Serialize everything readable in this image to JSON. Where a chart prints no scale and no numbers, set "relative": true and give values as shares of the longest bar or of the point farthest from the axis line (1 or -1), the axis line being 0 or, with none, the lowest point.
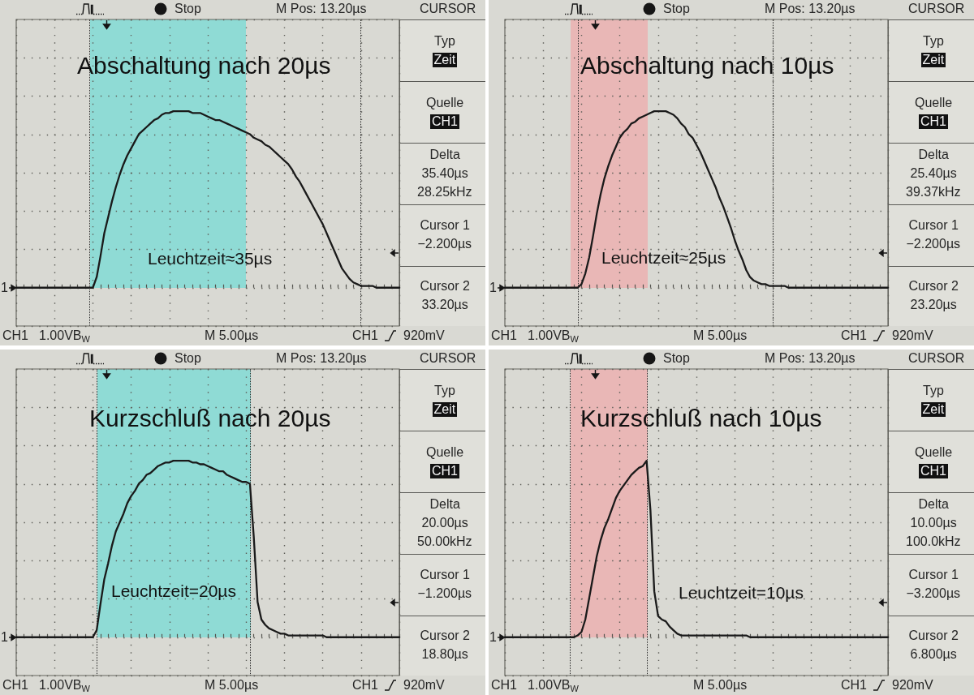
{
  "chart_data": [
    {
      "type": "line",
      "title": "Abschaltung nach 20µs",
      "relative": true,
      "categories": [
        null,
        null,
        null,
        null,
        null,
        null,
        null,
        null,
        null,
        null,
        null,
        null,
        null,
        null,
        null,
        null,
        null,
        null,
        null,
        null,
        null,
        null,
        null,
        null,
        null,
        null,
        null,
        null,
        null,
        null,
        null,
        null,
        null,
        null,
        null,
        null,
        null,
        null,
        null,
        null,
        null,
        null,
        null,
        null,
        null,
        null,
        null,
        null,
        null,
        null,
        null,
        null,
        null,
        null,
        null,
        null,
        null,
        null,
        null,
        null,
        null,
        null,
        null,
        null,
        null,
        null,
        null,
        null,
        null,
        null,
        null,
        null,
        null,
        null,
        null,
        null,
        null,
        null,
        null,
        null,
        null,
        null,
        null,
        null,
        null,
        null,
        null,
        null,
        null,
        null,
        null,
        null,
        null,
        null,
        null,
        null,
        null,
        null,
        null,
        null,
        null
      ],
      "values": [
        0,
        0,
        0,
        0,
        0,
        0,
        0,
        0,
        0,
        0,
        0,
        0,
        0,
        0,
        0,
        0,
        0,
        0,
        0,
        0,
        0,
        0.06,
        0.18,
        0.31,
        0.4,
        0.49,
        0.57,
        0.64,
        0.7,
        0.75,
        0.79,
        0.83,
        0.87,
        0.89,
        0.91,
        0.93,
        0.95,
        0.96,
        0.98,
        0.99,
        0.99,
        1,
        1,
        1,
        1,
        1,
        0.99,
        0.99,
        0.99,
        0.98,
        0.97,
        0.96,
        0.95,
        0.95,
        0.94,
        0.93,
        0.92,
        0.91,
        0.9,
        0.89,
        0.88,
        0.87,
        0.85,
        0.84,
        0.83,
        0.81,
        0.8,
        0.78,
        0.76,
        0.74,
        0.72,
        0.7,
        0.67,
        0.63,
        0.6,
        0.56,
        0.52,
        0.48,
        0.44,
        0.4,
        0.36,
        0.31,
        0.26,
        0.21,
        0.16,
        0.11,
        0.08,
        0.05,
        0.03,
        0.02,
        0.01,
        0.01,
        0.01,
        0.01,
        0,
        0,
        0,
        0,
        0,
        0,
        0
      ],
      "color": "#1a1a1a",
      "grid": true,
      "annotations": [
        "Stop",
        "M Pos: 13.20µs",
        "CURSOR",
        "Typ",
        "Zeit",
        "Quelle",
        "CH1",
        "Delta",
        "35.40µs",
        "28.25kHz",
        "Cursor 1",
        "−2.200µs",
        "Cursor 2",
        "33.20µs",
        "CH1",
        "1.00VB$_{W}$",
        "M 5.00µs",
        "CH1",
        "920mV",
        "1",
        "Leuchtzeit≈35µs"
      ]
    },
    {
      "type": "line",
      "title": "Abschaltung nach 10µs",
      "relative": true,
      "categories": [
        null,
        null,
        null,
        null,
        null,
        null,
        null,
        null,
        null,
        null,
        null,
        null,
        null,
        null,
        null,
        null,
        null,
        null,
        null,
        null,
        null,
        null,
        null,
        null,
        null,
        null,
        null,
        null,
        null,
        null,
        null,
        null,
        null,
        null,
        null,
        null,
        null,
        null,
        null,
        null,
        null,
        null,
        null,
        null,
        null,
        null,
        null,
        null,
        null,
        null,
        null,
        null,
        null,
        null,
        null,
        null,
        null,
        null,
        null,
        null,
        null,
        null,
        null,
        null,
        null,
        null,
        null,
        null,
        null,
        null,
        null,
        null,
        null,
        null,
        null,
        null,
        null,
        null,
        null,
        null,
        null,
        null,
        null,
        null,
        null,
        null,
        null,
        null,
        null,
        null,
        null,
        null,
        null,
        null,
        null,
        null,
        null,
        null,
        null,
        null,
        null
      ],
      "values": [
        0,
        0,
        0,
        0,
        0,
        0,
        0,
        0,
        0,
        0,
        0,
        0,
        0,
        0,
        0,
        0,
        0,
        0,
        0,
        0,
        0.02,
        0.08,
        0.17,
        0.29,
        0.42,
        0.53,
        0.62,
        0.69,
        0.75,
        0.8,
        0.85,
        0.88,
        0.9,
        0.93,
        0.94,
        0.96,
        0.97,
        0.98,
        0.99,
        1,
        1,
        1,
        1,
        0.99,
        0.98,
        0.96,
        0.93,
        0.91,
        0.87,
        0.85,
        0.81,
        0.77,
        0.72,
        0.67,
        0.62,
        0.57,
        0.51,
        0.46,
        0.4,
        0.34,
        0.27,
        0.21,
        0.16,
        0.1,
        0.06,
        0.04,
        0.03,
        0.02,
        0.02,
        0.01,
        0.01,
        0.01,
        0.01,
        0.01,
        0,
        0,
        0,
        0,
        0,
        0,
        0,
        0,
        0,
        0,
        0,
        0,
        0,
        0,
        0,
        0,
        0,
        0,
        0,
        0,
        0,
        0,
        0,
        0,
        0,
        0,
        0
      ],
      "color": "#1a1a1a",
      "grid": true,
      "annotations": [
        "Stop",
        "M Pos: 13.20µs",
        "CURSOR",
        "Typ",
        "Zeit",
        "Quelle",
        "CH1",
        "Delta",
        "25.40µs",
        "39.37kHz",
        "Cursor 1",
        "−2.200µs",
        "Cursor 2",
        "23.20µs",
        "CH1",
        "1.00VB$_{W}$",
        "M 5.00µs",
        "CH1",
        "920mV",
        "1",
        "Leuchtzeit≈25µs"
      ]
    },
    {
      "type": "line",
      "title": "Kurzschluß nach 20µs",
      "relative": true,
      "categories": [
        null,
        null,
        null,
        null,
        null,
        null,
        null,
        null,
        null,
        null,
        null,
        null,
        null,
        null,
        null,
        null,
        null,
        null,
        null,
        null,
        null,
        null,
        null,
        null,
        null,
        null,
        null,
        null,
        null,
        null,
        null,
        null,
        null,
        null,
        null,
        null,
        null,
        null,
        null,
        null,
        null,
        null,
        null,
        null,
        null,
        null,
        null,
        null,
        null,
        null,
        null,
        null,
        null,
        null,
        null,
        null,
        null,
        null,
        null,
        null,
        null,
        null,
        null,
        null,
        null,
        null,
        null,
        null,
        null,
        null,
        null,
        null,
        null,
        null,
        null,
        null,
        null,
        null,
        null,
        null,
        null,
        null,
        null,
        null,
        null,
        null,
        null,
        null,
        null,
        null,
        null,
        null,
        null,
        null,
        null,
        null,
        null,
        null,
        null,
        null,
        null
      ],
      "values": [
        0,
        0,
        0,
        0,
        0,
        0,
        0,
        0,
        0,
        0,
        0,
        0,
        0,
        0,
        0,
        0,
        0,
        0,
        0,
        0,
        0,
        0.04,
        0.19,
        0.33,
        0.42,
        0.52,
        0.6,
        0.65,
        0.7,
        0.76,
        0.8,
        0.83,
        0.87,
        0.89,
        0.92,
        0.93,
        0.95,
        0.97,
        0.98,
        0.99,
        0.99,
        1,
        1,
        1,
        1,
        1,
        0.99,
        0.99,
        0.98,
        0.98,
        0.97,
        0.96,
        0.95,
        0.94,
        0.94,
        0.92,
        0.91,
        0.9,
        0.89,
        0.88,
        0.88,
        0.87,
        0.57,
        0.2,
        0.1,
        0.07,
        0.05,
        0.04,
        0.03,
        0.02,
        0.02,
        0.01,
        0.01,
        0.01,
        0.01,
        0.01,
        0.01,
        0.01,
        0.01,
        0.01,
        0.01,
        0,
        0,
        0,
        0,
        0,
        0,
        0,
        0,
        0,
        0,
        0,
        0,
        0,
        0,
        0,
        0,
        0,
        0,
        0,
        0
      ],
      "color": "#1a1a1a",
      "grid": true,
      "annotations": [
        "Stop",
        "M Pos: 13.20µs",
        "CURSOR",
        "Typ",
        "Zeit",
        "Quelle",
        "CH1",
        "Delta",
        "20.00µs",
        "50.00kHz",
        "Cursor 1",
        "−1.200µs",
        "Cursor 2",
        "18.80µs",
        "CH1",
        "1.00VB$_{W}$",
        "M 5.00µs",
        "CH1",
        "920mV",
        "1",
        "Leuchtzeit=20µs"
      ]
    },
    {
      "type": "line",
      "title": "Kurzschluß nach 10µs",
      "relative": true,
      "categories": [
        null,
        null,
        null,
        null,
        null,
        null,
        null,
        null,
        null,
        null,
        null,
        null,
        null,
        null,
        null,
        null,
        null,
        null,
        null,
        null,
        null,
        null,
        null,
        null,
        null,
        null,
        null,
        null,
        null,
        null,
        null,
        null,
        null,
        null,
        null,
        null,
        null,
        null,
        null,
        null,
        null,
        null,
        null,
        null,
        null,
        null,
        null,
        null,
        null,
        null,
        null,
        null,
        null,
        null,
        null,
        null,
        null,
        null,
        null,
        null,
        null,
        null,
        null,
        null,
        null,
        null,
        null,
        null,
        null,
        null,
        null,
        null,
        null,
        null,
        null,
        null,
        null,
        null,
        null,
        null,
        null,
        null,
        null,
        null,
        null,
        null,
        null,
        null,
        null,
        null,
        null,
        null,
        null,
        null,
        null,
        null,
        null,
        null,
        null,
        null,
        null
      ],
      "values": [
        0,
        0,
        0,
        0,
        0,
        0,
        0,
        0,
        0,
        0,
        0,
        0,
        0,
        0,
        0,
        0,
        0,
        0,
        0,
        0.01,
        0.03,
        0.1,
        0.22,
        0.34,
        0.46,
        0.55,
        0.62,
        0.67,
        0.73,
        0.79,
        0.83,
        0.86,
        0.89,
        0.92,
        0.94,
        0.96,
        0.97,
        1,
        0.72,
        0.26,
        0.12,
        0.1,
        0.09,
        0.06,
        0.04,
        0.02,
        0.01,
        0.01,
        0.01,
        0.01,
        0.01,
        0.01,
        0.01,
        0.01,
        0.01,
        0.01,
        0.01,
        0.01,
        0.01,
        0.01,
        0.01,
        0.01,
        0.01,
        0.01,
        0,
        0,
        0,
        0,
        0,
        0,
        0,
        0,
        0,
        0,
        0,
        0,
        0,
        0,
        0,
        0,
        0,
        0,
        0,
        0,
        0,
        0,
        0,
        0,
        0,
        0,
        0,
        0,
        0,
        0,
        0,
        0,
        0,
        0,
        0,
        0,
        0
      ],
      "color": "#1a1a1a",
      "grid": true,
      "annotations": [
        "Stop",
        "M Pos: 13.20µs",
        "CURSOR",
        "Typ",
        "Zeit",
        "Quelle",
        "CH1",
        "Delta",
        "10.00µs",
        "100.0kHz",
        "Cursor 1",
        "−3.200µs",
        "Cursor 2",
        "6.800µs",
        "CH1",
        "1.00VB$_{W}$",
        "M 5.00µs",
        "CH1",
        "920mV",
        "1",
        "Leuchtzeit=10µs"
      ]
    }
  ]
}
